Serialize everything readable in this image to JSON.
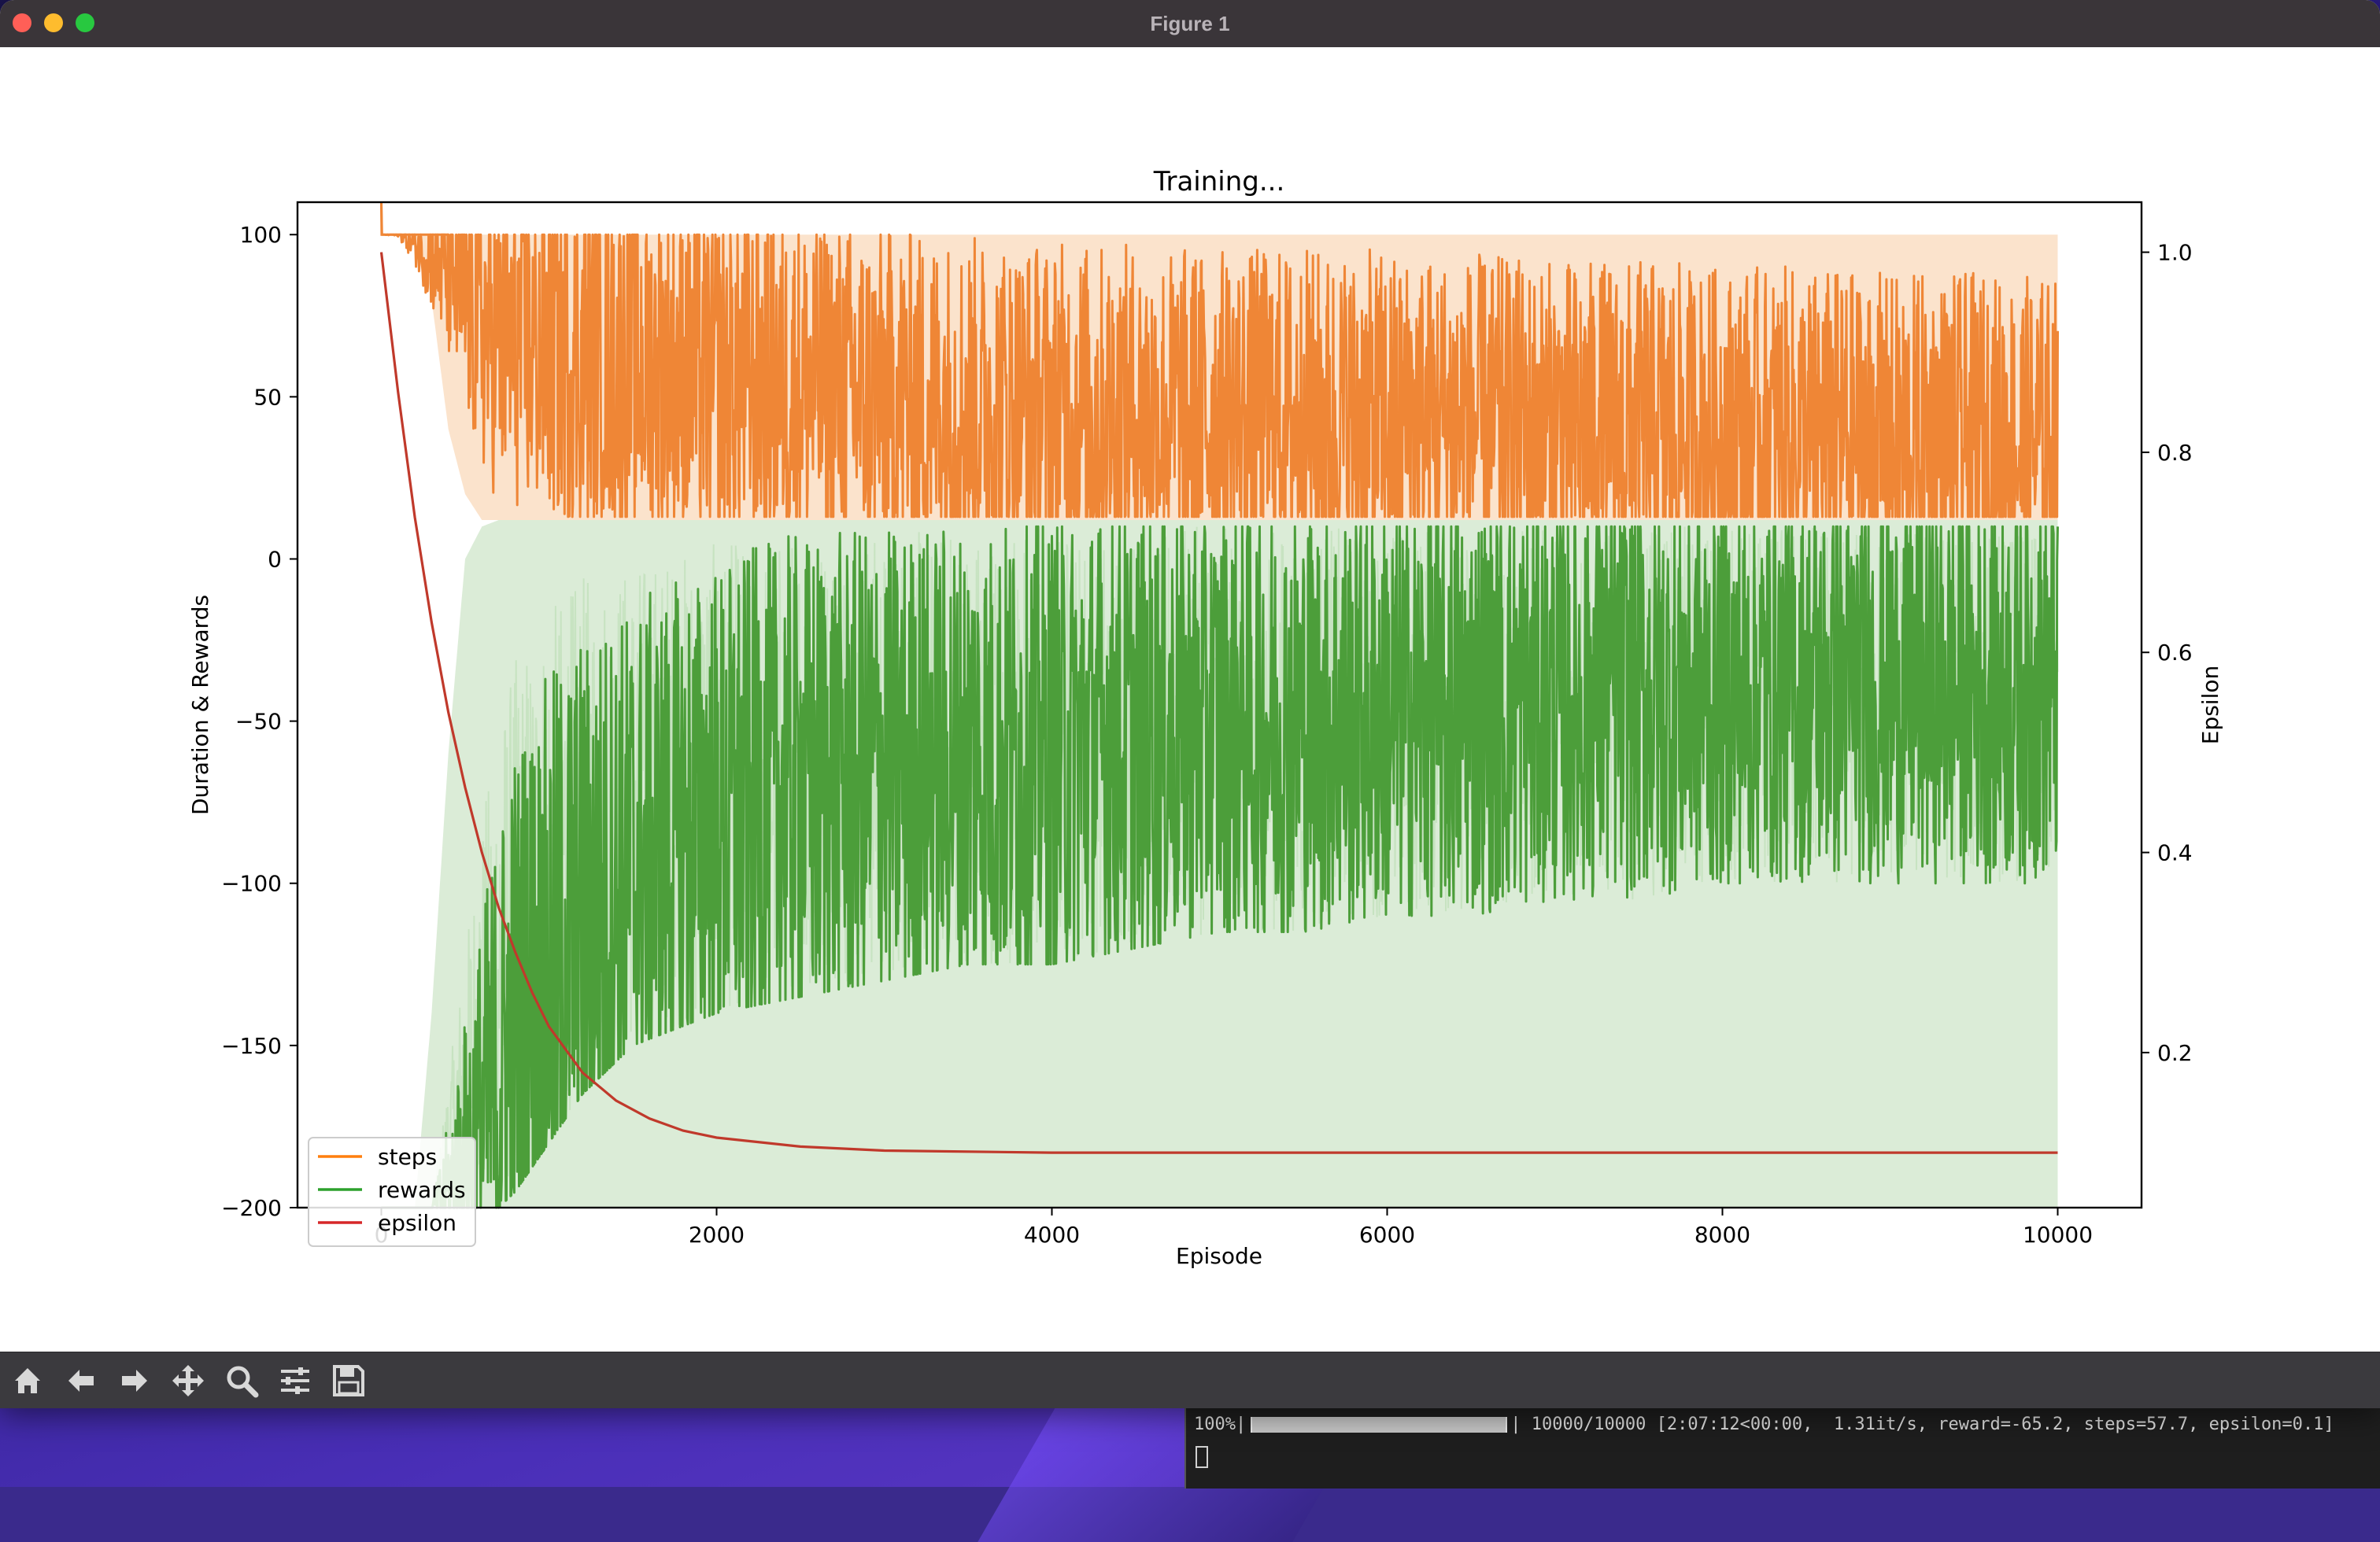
{
  "window": {
    "title": "Figure 1"
  },
  "toolbar": {
    "buttons": [
      {
        "name": "home-icon",
        "tooltip": "Reset original view"
      },
      {
        "name": "back-arrow-icon",
        "tooltip": "Back"
      },
      {
        "name": "forward-arrow-icon",
        "tooltip": "Forward"
      },
      {
        "name": "pan-move-icon",
        "tooltip": "Pan"
      },
      {
        "name": "zoom-magnifier-icon",
        "tooltip": "Zoom"
      },
      {
        "name": "configure-subplots-icon",
        "tooltip": "Configure subplots"
      },
      {
        "name": "save-floppy-icon",
        "tooltip": "Save"
      }
    ]
  },
  "terminal": {
    "ghost_text": "  ...",
    "progress_prefix": "100%|",
    "progress_suffix": "| 10000/10000 [2:07:12<00:00,  1.31it/s, reward=-65.2, steps=57.7, epsilon=0.1]"
  },
  "chart_data": {
    "type": "line",
    "title": "Training...",
    "xlabel": "Episode",
    "ylabel": "Duration & Rewards",
    "y2label": "Epsilon",
    "xlim": [
      -500,
      10500
    ],
    "ylim": [
      -200,
      110
    ],
    "y2lim": [
      0.045,
      1.05
    ],
    "xticks": [
      0,
      2000,
      4000,
      6000,
      8000,
      10000
    ],
    "xtick_labels": [
      "0",
      "2000",
      "4000",
      "6000",
      "8000",
      "10000"
    ],
    "yticks": [
      100,
      50,
      0,
      -50,
      -100,
      -150,
      -200
    ],
    "ytick_labels": [
      "100",
      "50",
      "0",
      "−50",
      "−100",
      "−150",
      "−200"
    ],
    "y2ticks": [
      1.0,
      0.8,
      0.6,
      0.4,
      0.2
    ],
    "y2tick_labels": [
      "1.0",
      "0.8",
      "0.6",
      "0.4",
      "0.2"
    ],
    "legend": {
      "placement": "lower-left",
      "entries": [
        {
          "label": "steps",
          "color": "#ff7f0e"
        },
        {
          "label": "rewards",
          "color": "#2ca02c"
        },
        {
          "label": "epsilon",
          "color": "#d62728"
        }
      ]
    },
    "series": [
      {
        "name": "steps",
        "axis": "left",
        "color": "#ef8636",
        "x": [
          0,
          1,
          2,
          100,
          200,
          300,
          400,
          500,
          600,
          700,
          800,
          1000,
          1200,
          1500,
          2000,
          2500,
          3000,
          3500,
          4000,
          4500,
          5000,
          5500,
          6000,
          6500,
          7000,
          7500,
          8000,
          8500,
          9000,
          9500,
          10000
        ],
        "mean": [
          110,
          110,
          100,
          100,
          97,
          92,
          88,
          80,
          72,
          68,
          66,
          64,
          62,
          60,
          56,
          54,
          50,
          48,
          46,
          45,
          44,
          44,
          43,
          42,
          40,
          40,
          38,
          38,
          36,
          36,
          35
        ],
        "band_low": [
          100,
          100,
          100,
          99,
          90,
          75,
          55,
          35,
          22,
          16,
          14,
          13,
          13,
          13,
          13,
          13,
          13,
          13,
          13,
          13,
          13,
          13,
          13,
          13,
          13,
          13,
          13,
          13,
          13,
          13,
          13
        ],
        "band_high": [
          110,
          110,
          100,
          100,
          100,
          100,
          100,
          100,
          100,
          100,
          100,
          100,
          100,
          100,
          100,
          100,
          100,
          100,
          100,
          100,
          100,
          100,
          100,
          100,
          100,
          100,
          100,
          100,
          100,
          100,
          100
        ],
        "fill_low": [
          100,
          100,
          100,
          100,
          100,
          80,
          40,
          20,
          12,
          12,
          12,
          12,
          12,
          12,
          12,
          12,
          12,
          12,
          12,
          12,
          12,
          12,
          12,
          12,
          12,
          12,
          12,
          12,
          12,
          12,
          12
        ]
      },
      {
        "name": "rewards",
        "axis": "left",
        "color": "#4c9e3a",
        "x": [
          0,
          100,
          200,
          300,
          400,
          500,
          600,
          700,
          800,
          1000,
          1200,
          1500,
          2000,
          2500,
          3000,
          3500,
          4000,
          4500,
          5000,
          5500,
          6000,
          6500,
          7000,
          7500,
          8000,
          8500,
          9000,
          9500,
          10000
        ],
        "mean": [
          -200,
          -200,
          -200,
          -200,
          -195,
          -185,
          -175,
          -160,
          -145,
          -125,
          -110,
          -95,
          -80,
          -70,
          -65,
          -62,
          -60,
          -55,
          -52,
          -50,
          -48,
          -46,
          -44,
          -42,
          -42,
          -40,
          -40,
          -40,
          -40
        ],
        "band_low": [
          -200,
          -200,
          -200,
          -200,
          -200,
          -200,
          -200,
          -200,
          -195,
          -180,
          -165,
          -150,
          -140,
          -135,
          -130,
          -125,
          -125,
          -120,
          -115,
          -115,
          -110,
          -110,
          -105,
          -105,
          -100,
          -100,
          -100,
          -100,
          -100
        ],
        "band_high": [
          -200,
          -200,
          -200,
          -200,
          -160,
          -120,
          -80,
          -50,
          -30,
          -15,
          -5,
          0,
          5,
          8,
          8,
          10,
          10,
          10,
          10,
          10,
          10,
          10,
          10,
          10,
          10,
          10,
          10,
          10,
          10
        ],
        "fill_low": [
          -200,
          -200,
          -200,
          -200,
          -200,
          -200,
          -200,
          -200,
          -200,
          -200,
          -200,
          -200,
          -200,
          -200,
          -200,
          -200,
          -200,
          -200,
          -200,
          -200,
          -200,
          -200,
          -200,
          -200,
          -200,
          -200,
          -200,
          -200,
          -200
        ],
        "fill_high": [
          -200,
          -200,
          -200,
          -140,
          -60,
          0,
          10,
          12,
          12,
          12,
          12,
          12,
          12,
          12,
          12,
          12,
          12,
          12,
          12,
          12,
          12,
          12,
          12,
          12,
          12,
          12,
          12,
          12,
          12
        ]
      },
      {
        "name": "epsilon",
        "axis": "right",
        "color": "#c0392b",
        "x": [
          0,
          100,
          200,
          300,
          400,
          500,
          600,
          700,
          800,
          900,
          1000,
          1200,
          1400,
          1600,
          1800,
          2000,
          2500,
          3000,
          4000,
          6000,
          8000,
          10000
        ],
        "values": [
          1.0,
          0.86,
          0.735,
          0.63,
          0.54,
          0.465,
          0.4,
          0.345,
          0.3,
          0.26,
          0.226,
          0.18,
          0.152,
          0.134,
          0.122,
          0.115,
          0.106,
          0.102,
          0.1,
          0.1,
          0.1,
          0.1
        ]
      }
    ]
  }
}
